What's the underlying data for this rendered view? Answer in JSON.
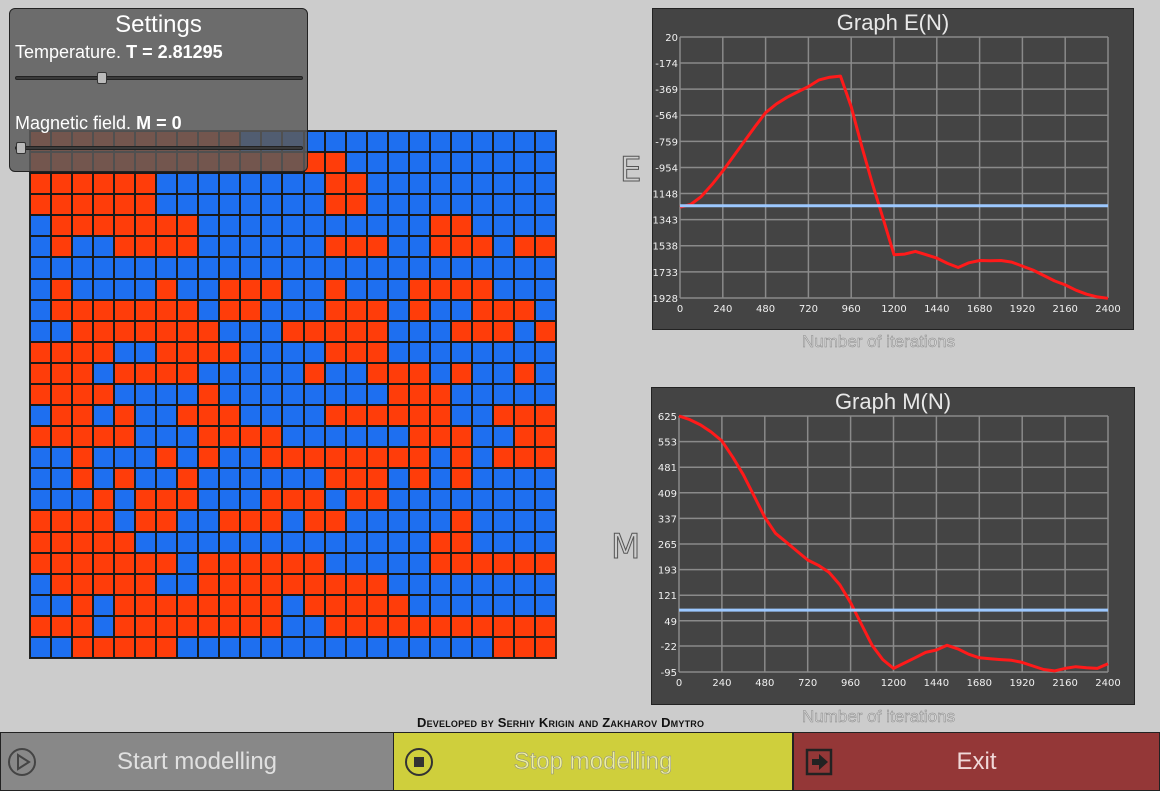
{
  "settings": {
    "title": "Settings",
    "temperature_label": "Temperature.",
    "temperature_value": "T = 2.81295",
    "temperature_fraction": 0.29,
    "field_label": "Magnetic field.",
    "field_value": "M = 0",
    "field_fraction": 0.0
  },
  "lattice": {
    "rows": [
      "RRRRRRRRRRBBBBBBBBBBBBBBB",
      "RRRRRRRRRRRRRRRBBBBBBBBBB",
      "RRRRRRBBBBBBBBRRBBBBBBBBB",
      "RRRRRRBBBBBBBBRRBBBBBBBBB",
      "BRRRRRRRBBBBBBBBBBBRRBBBB",
      "BRBBRRRRBBBBBBRRRBBRRRBRR",
      "BBBBBBBBBBBBBBBBBBBBBBBBB",
      "BRBBBBRBBRRRBBRBBBRRRRBBB",
      "BRRRRRRRBRRBBBRRRBRBBRRRB",
      "BBRRRRRRRBBBRRRRRBBBRRRBR",
      "RRRRBBRRRRBBBBRRRBBBBBBBB",
      "RRRBRRRRBBBBBRBBRRRBRBBRB",
      "RRRRBBBBRBBBBBBBBRRRBBBBB",
      "BRRBRBBRRRBBBBRRRRRRBBRRR",
      "RRRRRBBBRRRRBBBBBBRRRBBRR",
      "BBRBBBRBRBBRRRRRRRRBRBRRR",
      "BBRBRBBRBBBBBBRRRBRBRBBBB",
      "BBBRBRRRBBBRRRBRRBBBBBBBB",
      "RRRRBRRBBRRRBRRBBBBBRBBBB",
      "RRRRRBBBBBBBBBBBBBBRRBBBB",
      "RRRRRRRBRRRRRRBBBBBRRRRRR",
      "BRRRRRBBRRRRRRRRRBBBBBBBB",
      "BBRBRRRRRRRRBRRRRRBBBBBBB",
      "RRRBRRRRRRRRBBRRRRRRRRRRR",
      "BBRRRRRBBBBBBBBBBBBBBBRRR"
    ],
    "colors": {
      "up": "#1e6ff0",
      "down": "#ff3d0a"
    }
  },
  "graph_e": {
    "title": "Graph E(N)",
    "axis_letter": "E",
    "xlabel": "Number of iterations"
  },
  "graph_m": {
    "title": "Graph M(N)",
    "axis_letter": "M",
    "xlabel": "Number of iterations"
  },
  "chart_data": [
    {
      "type": "line",
      "title": "Graph E(N)",
      "xlabel": "Number of iterations",
      "ylabel": "E",
      "x_ticks": [
        0,
        240,
        480,
        720,
        960,
        1200,
        1440,
        1680,
        1920,
        2160,
        2400
      ],
      "y_ticks": [
        20,
        -174,
        -369,
        -564,
        -759,
        -954,
        -1148,
        -1343,
        -1538,
        -1733,
        -1928
      ],
      "xlim": [
        0,
        2400
      ],
      "ylim": [
        -1928,
        20
      ],
      "grid": true,
      "series": [
        {
          "color": "#ff1a1a",
          "x": [
            0,
            60,
            120,
            180,
            240,
            300,
            360,
            420,
            480,
            540,
            600,
            660,
            720,
            780,
            840,
            880,
            900,
            960,
            1020,
            1080,
            1140,
            1200,
            1260,
            1320,
            1380,
            1440,
            1500,
            1560,
            1620,
            1680,
            1740,
            1800,
            1860,
            1920,
            1980,
            2040,
            2100,
            2160,
            2220,
            2280,
            2340,
            2400
          ],
          "y": [
            -1250,
            -1230,
            -1170,
            -1080,
            -980,
            -870,
            -760,
            -650,
            -545,
            -480,
            -430,
            -390,
            -350,
            -300,
            -280,
            -275,
            -272,
            -500,
            -800,
            -1080,
            -1340,
            -1605,
            -1600,
            -1580,
            -1605,
            -1630,
            -1670,
            -1700,
            -1665,
            -1648,
            -1650,
            -1648,
            -1660,
            -1690,
            -1720,
            -1760,
            -1800,
            -1830,
            -1870,
            -1900,
            -1920,
            -1930
          ]
        },
        {
          "color": "#9cc8ff",
          "x": [
            0,
            2400
          ],
          "y": [
            -1240,
            -1240
          ]
        }
      ]
    },
    {
      "type": "line",
      "title": "Graph M(N)",
      "xlabel": "Number of iterations",
      "ylabel": "M",
      "x_ticks": [
        0,
        240,
        480,
        720,
        960,
        1200,
        1440,
        1680,
        1920,
        2160,
        2400
      ],
      "y_ticks": [
        625,
        553,
        481,
        409,
        337,
        265,
        193,
        121,
        49,
        -22,
        -95
      ],
      "xlim": [
        0,
        2400
      ],
      "ylim": [
        -95,
        625
      ],
      "grid": true,
      "series": [
        {
          "color": "#ff1a1a",
          "x": [
            0,
            60,
            120,
            180,
            240,
            300,
            360,
            420,
            480,
            540,
            600,
            660,
            720,
            780,
            840,
            900,
            960,
            1020,
            1080,
            1140,
            1200,
            1260,
            1320,
            1380,
            1440,
            1500,
            1560,
            1620,
            1680,
            1740,
            1800,
            1860,
            1920,
            1980,
            2040,
            2100,
            2160,
            2220,
            2280,
            2340,
            2400
          ],
          "y": [
            625,
            615,
            600,
            580,
            555,
            510,
            460,
            400,
            340,
            295,
            270,
            245,
            220,
            205,
            185,
            150,
            100,
            40,
            -20,
            -60,
            -85,
            -70,
            -55,
            -40,
            -33,
            -20,
            -30,
            -45,
            -55,
            -58,
            -60,
            -62,
            -68,
            -78,
            -88,
            -92,
            -85,
            -80,
            -83,
            -85,
            -72
          ]
        },
        {
          "color": "#9cc8ff",
          "x": [
            0,
            2400
          ],
          "y": [
            79,
            79
          ]
        }
      ]
    }
  ],
  "credits": "Developed by Serhiy Krigin and Zakharov Dmytro",
  "buttons": {
    "start": "Start modelling",
    "stop": "Stop modelling",
    "exit": "Exit"
  }
}
